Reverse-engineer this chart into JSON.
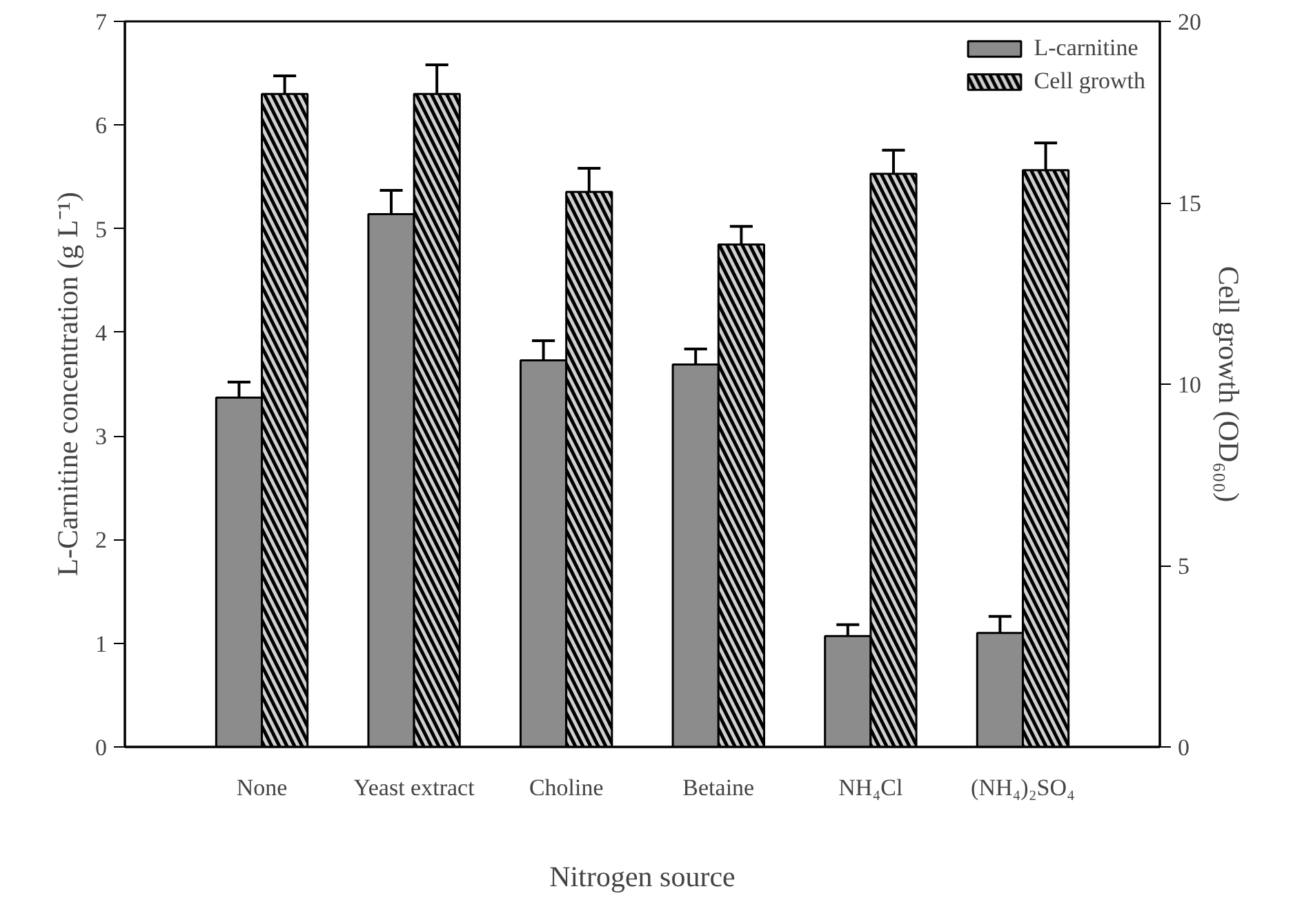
{
  "chart_data": {
    "type": "bar",
    "xlabel": "Nitrogen source",
    "ylabel": "L-Carnitine concentration (g L⁻¹)",
    "y2label": "Cell growth (OD₆₀₀)",
    "categories": [
      "None",
      "Yeast extract",
      "Choline",
      "Betaine",
      "NH₄Cl",
      "(NH₄)₂SO₄"
    ],
    "series": [
      {
        "name": "L-carnitine",
        "color": "#8c8c8c",
        "values": [
          3.37,
          5.14,
          3.73,
          3.69,
          1.07,
          1.1
        ],
        "errors": [
          0.15,
          0.23,
          0.19,
          0.15,
          0.11,
          0.16
        ]
      },
      {
        "name": "Cell growth",
        "color": "#d0d0d0",
        "axis": "y2",
        "values": [
          18.0,
          18.0,
          15.3,
          13.85,
          15.8,
          15.9
        ],
        "errors": [
          0.5,
          0.8,
          0.65,
          0.5,
          0.65,
          0.75
        ]
      }
    ],
    "ylim": [
      0,
      7
    ],
    "yticks": [
      0,
      1,
      2,
      3,
      4,
      5,
      6,
      7
    ],
    "y2lim": [
      0,
      20
    ],
    "y2ticks": [
      0,
      5,
      10,
      15,
      20
    ],
    "grid": false,
    "legend": "top right"
  }
}
